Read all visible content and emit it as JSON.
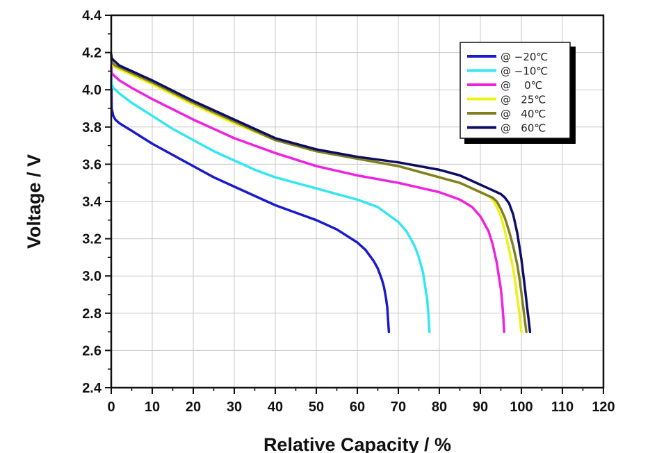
{
  "chart_data": {
    "type": "line",
    "title": "",
    "xlabel": "Relative Capacity / %",
    "ylabel": "Voltage / V",
    "xlim": [
      0,
      120
    ],
    "ylim": [
      2.4,
      4.4
    ],
    "xticks": [
      "0",
      "10",
      "20",
      "30",
      "40",
      "50",
      "60",
      "70",
      "80",
      "90",
      "100",
      "110",
      "120"
    ],
    "yticks": [
      "2.4",
      "2.6",
      "2.8",
      "3.0",
      "3.2",
      "3.4",
      "3.6",
      "3.8",
      "4.0",
      "4.2",
      "4.4"
    ],
    "grid": true,
    "legend_position": "top-right",
    "series": [
      {
        "name": "@ −20℃",
        "color": "#1a1acc",
        "x": [
          0,
          0.1,
          0.5,
          1,
          2,
          5,
          10,
          15,
          20,
          25,
          30,
          35,
          40,
          45,
          50,
          55,
          60,
          62,
          64,
          65,
          66,
          66.5,
          67,
          67.3,
          67.5,
          67.7
        ],
        "y": [
          4.08,
          3.9,
          3.86,
          3.84,
          3.82,
          3.78,
          3.71,
          3.65,
          3.59,
          3.53,
          3.48,
          3.43,
          3.38,
          3.34,
          3.3,
          3.25,
          3.18,
          3.14,
          3.08,
          3.04,
          2.98,
          2.94,
          2.88,
          2.83,
          2.76,
          2.7
        ]
      },
      {
        "name": "@ −10℃",
        "color": "#33e6f2",
        "x": [
          0,
          0.1,
          0.5,
          1,
          2,
          5,
          10,
          15,
          20,
          25,
          30,
          35,
          40,
          45,
          50,
          55,
          60,
          65,
          70,
          72,
          74,
          75,
          76,
          76.5,
          77,
          77.3,
          77.6
        ],
        "y": [
          4.12,
          4.03,
          4.01,
          4.0,
          3.98,
          3.93,
          3.86,
          3.79,
          3.73,
          3.67,
          3.62,
          3.57,
          3.53,
          3.5,
          3.47,
          3.44,
          3.41,
          3.37,
          3.29,
          3.24,
          3.16,
          3.1,
          3.02,
          2.95,
          2.88,
          2.8,
          2.7
        ]
      },
      {
        "name": "@    0℃",
        "color": "#ee22e0",
        "x": [
          0,
          0.1,
          0.5,
          1,
          2,
          5,
          10,
          20,
          30,
          40,
          50,
          60,
          70,
          80,
          85,
          88,
          90,
          92,
          93,
          94,
          94.5,
          95,
          95.3,
          95.6,
          95.8
        ],
        "y": [
          4.13,
          4.09,
          4.08,
          4.07,
          4.05,
          4.01,
          3.95,
          3.84,
          3.74,
          3.66,
          3.59,
          3.54,
          3.5,
          3.45,
          3.41,
          3.37,
          3.32,
          3.24,
          3.17,
          3.07,
          3.0,
          2.93,
          2.86,
          2.78,
          2.7
        ]
      },
      {
        "name": "@   25℃",
        "color": "#f0f018",
        "x": [
          0,
          0.1,
          0.5,
          1,
          2,
          5,
          10,
          20,
          30,
          40,
          50,
          60,
          70,
          80,
          85,
          88,
          90,
          92,
          93,
          94,
          95,
          96,
          97,
          98,
          98.5,
          99,
          99.4,
          99.7,
          100
        ],
        "y": [
          4.16,
          4.14,
          4.13,
          4.12,
          4.11,
          4.08,
          4.03,
          3.92,
          3.82,
          3.73,
          3.67,
          3.63,
          3.59,
          3.53,
          3.5,
          3.47,
          3.45,
          3.43,
          3.41,
          3.37,
          3.32,
          3.24,
          3.14,
          3.04,
          2.97,
          2.88,
          2.82,
          2.76,
          2.7
        ]
      },
      {
        "name": "@   40℃",
        "color": "#808020",
        "x": [
          0,
          0.1,
          0.5,
          1,
          2,
          5,
          10,
          20,
          30,
          40,
          50,
          60,
          70,
          80,
          85,
          88,
          90,
          92,
          93,
          94,
          95,
          96,
          97,
          98,
          99,
          99.5,
          100,
          100.4,
          100.8,
          101.2
        ],
        "y": [
          4.17,
          4.15,
          4.14,
          4.13,
          4.12,
          4.09,
          4.04,
          3.93,
          3.83,
          3.73,
          3.67,
          3.63,
          3.59,
          3.53,
          3.5,
          3.47,
          3.45,
          3.43,
          3.42,
          3.4,
          3.36,
          3.31,
          3.24,
          3.16,
          3.06,
          2.99,
          2.91,
          2.84,
          2.77,
          2.7
        ]
      },
      {
        "name": "@   60℃",
        "color": "#0d0d66",
        "x": [
          0,
          0.1,
          0.5,
          1,
          2,
          5,
          10,
          20,
          30,
          40,
          50,
          60,
          70,
          80,
          85,
          88,
          90,
          92,
          94,
          95,
          96,
          97,
          98,
          99,
          100,
          100.5,
          101,
          101.4,
          101.8,
          102.1
        ],
        "y": [
          4.19,
          4.17,
          4.16,
          4.15,
          4.13,
          4.1,
          4.05,
          3.94,
          3.84,
          3.74,
          3.68,
          3.64,
          3.61,
          3.57,
          3.54,
          3.51,
          3.49,
          3.47,
          3.45,
          3.44,
          3.42,
          3.39,
          3.33,
          3.23,
          3.09,
          3.0,
          2.91,
          2.83,
          2.76,
          2.7
        ]
      }
    ]
  }
}
